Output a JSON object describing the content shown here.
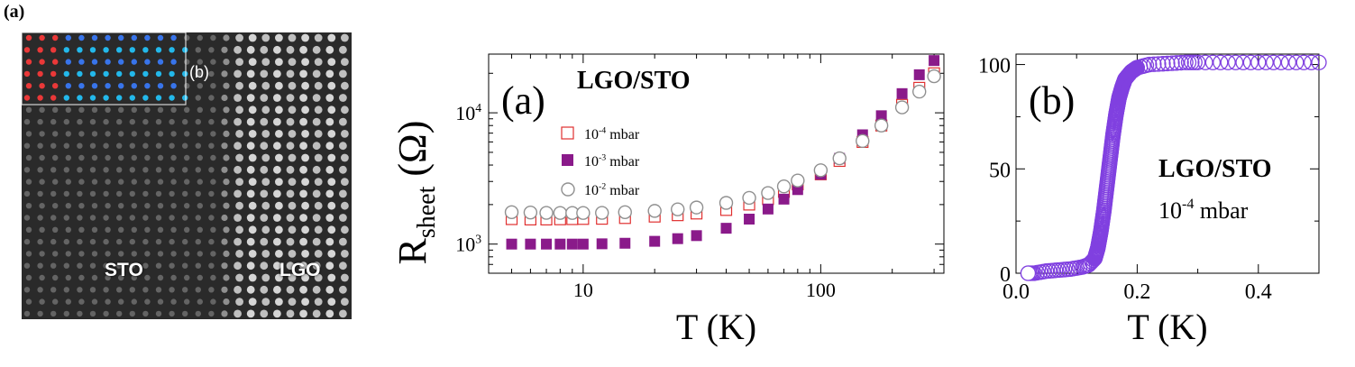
{
  "panel_label": "(a)",
  "stem": {
    "inset_label": "(b)",
    "region_left": "STO",
    "region_right": "LGO"
  },
  "chart_data": [
    {
      "type": "scatter",
      "panel": "(a)",
      "title": "LGO/STO",
      "xlabel": "T (K)",
      "ylabel_main": "R",
      "ylabel_sub": "sheet",
      "ylabel_unit": "(Ω)",
      "xscale": "log",
      "yscale": "log",
      "xlim": [
        4,
        330
      ],
      "ylim": [
        600,
        28000
      ],
      "xticks": [
        10,
        100
      ],
      "yticks": [
        {
          "value": 1000,
          "base": "10",
          "exp": "3"
        },
        {
          "value": 10000,
          "base": "10",
          "exp": "4"
        }
      ],
      "legend_position": "top-left",
      "series": [
        {
          "name_base": "10",
          "name_exp": "-4",
          "name_unit": "mbar",
          "marker": "open-square",
          "color": "#e03030",
          "x": [
            5,
            6,
            7,
            8,
            9,
            10,
            12,
            15,
            20,
            25,
            30,
            40,
            50,
            60,
            70,
            80,
            100,
            120,
            150,
            180,
            220,
            260,
            300
          ],
          "y": [
            1550,
            1540,
            1540,
            1545,
            1550,
            1555,
            1560,
            1580,
            1620,
            1660,
            1710,
            1820,
            2000,
            2200,
            2500,
            2850,
            3400,
            4300,
            6000,
            8000,
            11500,
            15500,
            20000
          ]
        },
        {
          "name_base": "10",
          "name_exp": "-3",
          "name_unit": "mbar",
          "marker": "filled-square",
          "color": "#8a1a8a",
          "x": [
            5,
            6,
            7,
            8,
            9,
            10,
            12,
            15,
            20,
            25,
            30,
            40,
            50,
            60,
            70,
            80,
            100,
            120,
            150,
            180,
            220,
            260,
            300
          ],
          "y": [
            1000,
            1000,
            1000,
            1000,
            1000,
            1000,
            1005,
            1015,
            1050,
            1100,
            1160,
            1320,
            1550,
            1850,
            2200,
            2600,
            3400,
            4500,
            6800,
            9500,
            14000,
            19500,
            25000
          ]
        },
        {
          "name_base": "10",
          "name_exp": "-2",
          "name_unit": "mbar",
          "marker": "open-circle",
          "color": "#909090",
          "x": [
            5,
            6,
            7,
            8,
            9,
            10,
            12,
            15,
            20,
            25,
            30,
            40,
            50,
            60,
            70,
            80,
            100,
            120,
            150,
            180,
            220,
            260,
            300
          ],
          "y": [
            1750,
            1740,
            1730,
            1725,
            1725,
            1725,
            1730,
            1750,
            1790,
            1840,
            1900,
            2060,
            2250,
            2450,
            2750,
            3050,
            3650,
            4500,
            6100,
            8000,
            11000,
            14500,
            19000
          ]
        }
      ]
    },
    {
      "type": "scatter",
      "panel": "(b)",
      "xlabel": "T (K)",
      "ylabel": "",
      "xlim": [
        0.0,
        0.5
      ],
      "ylim": [
        0,
        105
      ],
      "xticks": [
        "0.0",
        "0.2",
        "0.4"
      ],
      "yticks": [
        "0",
        "50",
        "100"
      ],
      "annotation_title": "LGO/STO",
      "annotation_base": "10",
      "annotation_exp": "-4",
      "annotation_unit": "mbar",
      "series": [
        {
          "marker": "open-circle",
          "color": "#8040e0",
          "x": [
            0.02,
            0.03,
            0.05,
            0.07,
            0.09,
            0.11,
            0.12,
            0.13,
            0.135,
            0.14,
            0.145,
            0.15,
            0.155,
            0.16,
            0.165,
            0.17,
            0.175,
            0.18,
            0.19,
            0.2,
            0.22,
            0.25,
            0.28,
            0.3,
            0.35,
            0.4,
            0.45,
            0.5
          ],
          "y": [
            0,
            0,
            1,
            1.5,
            2,
            3,
            4,
            7,
            12,
            20,
            30,
            42,
            54,
            66,
            76,
            84,
            89,
            93,
            96.5,
            98.5,
            100,
            100.5,
            101,
            101,
            101,
            101,
            101,
            101
          ]
        }
      ]
    }
  ]
}
